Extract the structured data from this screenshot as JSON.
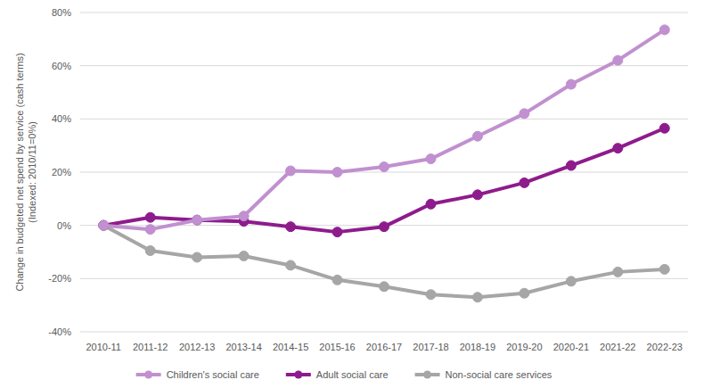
{
  "chart_data": {
    "type": "line",
    "y_label": [
      "Change in budgeted net spend by service (cash terms)",
      "(Indexed: 2010/11=0%)"
    ],
    "categories": [
      "2010-11",
      "2011-12",
      "2012-13",
      "2013-14",
      "2014-15",
      "2015-16",
      "2016-17",
      "2017-18",
      "2018-19",
      "2019-20",
      "2020-21",
      "2021-22",
      "2022-23"
    ],
    "series": [
      {
        "name": "Children's social care",
        "color": "#c190d0",
        "marker": "circle",
        "line_style": "solid",
        "values": [
          0,
          -1.5,
          2,
          3.5,
          20.5,
          20,
          22,
          25,
          33.5,
          42,
          53,
          62,
          73.5
        ]
      },
      {
        "name": "Adult social care",
        "color": "#8e1b8c",
        "marker": "circle",
        "line_style": "solid",
        "values": [
          0,
          3,
          2,
          1.5,
          -0.5,
          -2.5,
          -0.5,
          8,
          11.5,
          16,
          22.5,
          29,
          36.5
        ]
      },
      {
        "name": "Non-social care services",
        "color": "#a6a6a6",
        "marker": "circle",
        "line_style": "solid",
        "values": [
          0,
          -9.5,
          -12,
          -11.5,
          -15,
          -20.5,
          -23,
          -26,
          -27,
          -25.5,
          -21,
          -17.5,
          -16.5
        ]
      }
    ],
    "ylim": [
      -40,
      80
    ],
    "yticks": [
      {
        "value": -40,
        "label": "-40%"
      },
      {
        "value": -20,
        "label": "-20%"
      },
      {
        "value": 0,
        "label": "0%"
      },
      {
        "value": 20,
        "label": "20%"
      },
      {
        "value": 40,
        "label": "40%"
      },
      {
        "value": 60,
        "label": "60%"
      },
      {
        "value": 80,
        "label": "80%"
      }
    ],
    "grid": true,
    "legend": "bottom"
  }
}
